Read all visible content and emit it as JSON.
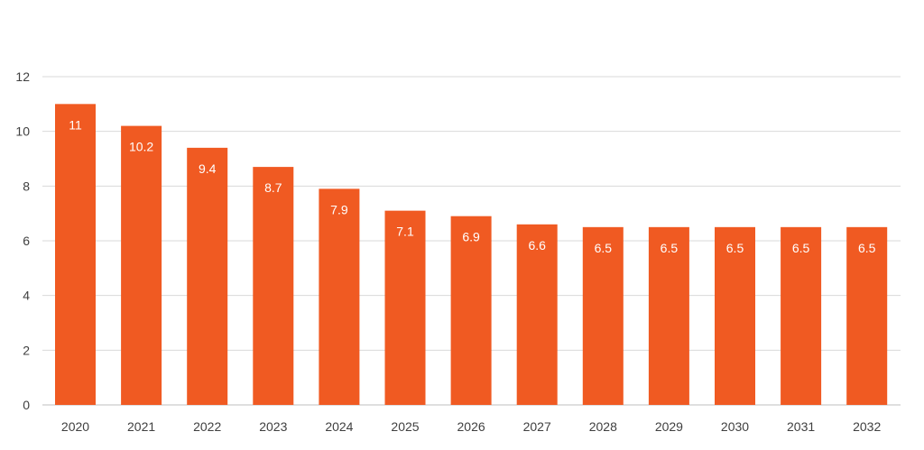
{
  "chart_data": {
    "type": "bar",
    "title": "",
    "xlabel": "",
    "ylabel": "",
    "categories": [
      "2020",
      "2021",
      "2022",
      "2023",
      "2024",
      "2025",
      "2026",
      "2027",
      "2028",
      "2029",
      "2030",
      "2031",
      "2032"
    ],
    "values": [
      11,
      10.2,
      9.4,
      8.7,
      7.9,
      7.1,
      6.9,
      6.6,
      6.5,
      6.5,
      6.5,
      6.5,
      6.5
    ],
    "data_labels": [
      "11",
      "10.2",
      "9.4",
      "8.7",
      "7.9",
      "7.1",
      "6.9",
      "6.6",
      "6.5",
      "6.5",
      "6.5",
      "6.5",
      "6.5"
    ],
    "ylim": [
      0,
      12
    ],
    "yticks": [
      0,
      2,
      4,
      6,
      8,
      10,
      12
    ],
    "ytick_labels": [
      "0",
      "2",
      "4",
      "6",
      "8",
      "10",
      "12"
    ],
    "grid": true,
    "legend": "none",
    "bar_color": "#f05a22",
    "grid_color": "#d9d9d9"
  }
}
